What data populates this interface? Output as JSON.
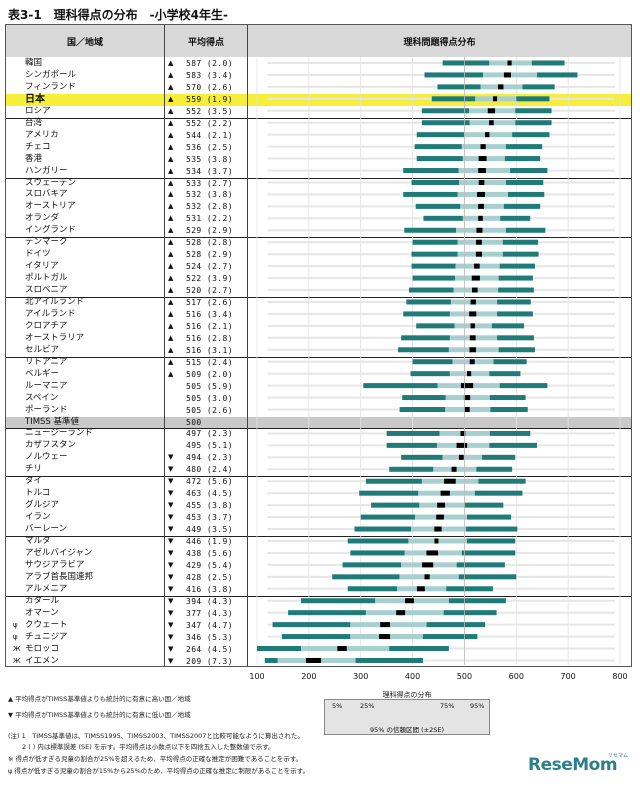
{
  "title": "表3-1　理科得点の分布　-小学校4年生-",
  "headers": {
    "country": "国／地域",
    "score": "平均得点",
    "dist": "理科問題得点分布"
  },
  "chart_data": {
    "type": "table",
    "xticks": [
      100,
      200,
      300,
      400,
      500,
      600,
      700,
      800
    ],
    "xlim": [
      100,
      800
    ],
    "benchmark": 500,
    "rows": [
      {
        "name": "韓国",
        "mark": "",
        "sig": "▲",
        "score": "587 (2.0)",
        "mean": 587,
        "p5": 458,
        "p25": 548,
        "p75": 630,
        "p95": 693
      },
      {
        "name": "シンガポール",
        "mark": "",
        "sig": "▲",
        "score": "583 (3.4)",
        "mean": 583,
        "p5": 423,
        "p25": 536,
        "p75": 640,
        "p95": 718
      },
      {
        "name": "フィンランド",
        "mark": "",
        "sig": "▲",
        "score": "570 (2.6)",
        "mean": 570,
        "p5": 448,
        "p25": 531,
        "p75": 612,
        "p95": 674
      },
      {
        "name": "日本",
        "mark": "",
        "sig": "▲",
        "score": "559 (1.9)",
        "mean": 559,
        "p5": 437,
        "p25": 521,
        "p75": 600,
        "p95": 664
      },
      {
        "name": "ロシア",
        "mark": "",
        "sig": "▲",
        "score": "552 (3.5)",
        "mean": 552,
        "p5": 418,
        "p25": 509,
        "p75": 598,
        "p95": 668
      },
      {
        "name": "台湾",
        "mark": "",
        "sig": "▲",
        "score": "552 (2.2)",
        "mean": 552,
        "p5": 418,
        "p25": 510,
        "p75": 598,
        "p95": 668
      },
      {
        "name": "アメリカ",
        "mark": "",
        "sig": "▲",
        "score": "544 (2.1)",
        "mean": 544,
        "p5": 408,
        "p25": 500,
        "p75": 592,
        "p95": 664
      },
      {
        "name": "チェコ",
        "mark": "",
        "sig": "▲",
        "score": "536 (2.5)",
        "mean": 536,
        "p5": 404,
        "p25": 495,
        "p75": 580,
        "p95": 650
      },
      {
        "name": "香港",
        "mark": "",
        "sig": "▲",
        "score": "535 (3.8)",
        "mean": 535,
        "p5": 408,
        "p25": 497,
        "p75": 578,
        "p95": 646
      },
      {
        "name": "ハンガリー",
        "mark": "",
        "sig": "▲",
        "score": "534 (3.7)",
        "mean": 534,
        "p5": 382,
        "p25": 489,
        "p75": 588,
        "p95": 660
      },
      {
        "name": "スウェーデン",
        "mark": "",
        "sig": "▲",
        "score": "533 (2.7)",
        "mean": 533,
        "p5": 398,
        "p25": 490,
        "p75": 580,
        "p95": 652
      },
      {
        "name": "スロバキア",
        "mark": "",
        "sig": "▲",
        "score": "532 (3.8)",
        "mean": 532,
        "p5": 382,
        "p25": 487,
        "p75": 584,
        "p95": 654
      },
      {
        "name": "オーストリア",
        "mark": "",
        "sig": "▲",
        "score": "532 (2.8)",
        "mean": 532,
        "p5": 406,
        "p25": 492,
        "p75": 576,
        "p95": 646
      },
      {
        "name": "オランダ",
        "mark": "",
        "sig": "▲",
        "score": "531 (2.2)",
        "mean": 531,
        "p5": 421,
        "p25": 497,
        "p75": 569,
        "p95": 627
      },
      {
        "name": "イングランド",
        "mark": "",
        "sig": "▲",
        "score": "529 (2.9)",
        "mean": 529,
        "p5": 384,
        "p25": 484,
        "p75": 580,
        "p95": 656
      },
      {
        "name": "デンマーク",
        "mark": "",
        "sig": "▲",
        "score": "528 (2.8)",
        "mean": 528,
        "p5": 400,
        "p25": 487,
        "p75": 574,
        "p95": 642
      },
      {
        "name": "ドイツ",
        "mark": "",
        "sig": "▲",
        "score": "528 (2.9)",
        "mean": 528,
        "p5": 398,
        "p25": 487,
        "p75": 574,
        "p95": 643
      },
      {
        "name": "イタリア",
        "mark": "",
        "sig": "▲",
        "score": "524 (2.7)",
        "mean": 524,
        "p5": 398,
        "p25": 483,
        "p75": 568,
        "p95": 636
      },
      {
        "name": "ポルトガル",
        "mark": "",
        "sig": "▲",
        "score": "522 (3.9)",
        "mean": 522,
        "p5": 400,
        "p25": 482,
        "p75": 566,
        "p95": 632
      },
      {
        "name": "スロベニア",
        "mark": "",
        "sig": "▲",
        "score": "520 (2.7)",
        "mean": 520,
        "p5": 393,
        "p25": 479,
        "p75": 565,
        "p95": 634
      },
      {
        "name": "北アイルランド",
        "mark": "",
        "sig": "▲",
        "score": "517 (2.6)",
        "mean": 517,
        "p5": 388,
        "p25": 474,
        "p75": 563,
        "p95": 628
      },
      {
        "name": "アイルランド",
        "mark": "",
        "sig": "▲",
        "score": "516 (3.4)",
        "mean": 516,
        "p5": 382,
        "p25": 472,
        "p75": 563,
        "p95": 632
      },
      {
        "name": "クロアチア",
        "mark": "",
        "sig": "▲",
        "score": "516 (2.1)",
        "mean": 516,
        "p5": 407,
        "p25": 481,
        "p75": 553,
        "p95": 615
      },
      {
        "name": "オーストラリア",
        "mark": "",
        "sig": "▲",
        "score": "516 (2.8)",
        "mean": 516,
        "p5": 378,
        "p25": 472,
        "p75": 563,
        "p95": 634
      },
      {
        "name": "セルビア",
        "mark": "",
        "sig": "▲",
        "score": "516 (3.1)",
        "mean": 516,
        "p5": 372,
        "p25": 470,
        "p75": 566,
        "p95": 636
      },
      {
        "name": "リトアニア",
        "mark": "",
        "sig": "▲",
        "score": "515 (2.4)",
        "mean": 515,
        "p5": 400,
        "p25": 477,
        "p75": 556,
        "p95": 620
      },
      {
        "name": "ベルギー",
        "mark": "",
        "sig": "▲",
        "score": "509 (2.0)",
        "mean": 509,
        "p5": 396,
        "p25": 472,
        "p75": 548,
        "p95": 608
      },
      {
        "name": "ルーマニア",
        "mark": "",
        "sig": "",
        "score": "505 (5.9)",
        "mean": 505,
        "p5": 305,
        "p25": 448,
        "p75": 568,
        "p95": 660
      },
      {
        "name": "スペイン",
        "mark": "",
        "sig": "",
        "score": "505 (3.0)",
        "mean": 505,
        "p5": 380,
        "p25": 464,
        "p75": 549,
        "p95": 618
      },
      {
        "name": "ポーランド",
        "mark": "",
        "sig": "",
        "score": "505 (2.6)",
        "mean": 505,
        "p5": 375,
        "p25": 463,
        "p75": 550,
        "p95": 622
      },
      {
        "name": "TIMSS 基準値",
        "mark": "",
        "sig": "",
        "score": "500",
        "bench": true
      },
      {
        "name": "ニュージーランド",
        "mark": "",
        "sig": "",
        "score": "497 (2.3)",
        "mean": 497,
        "p5": 350,
        "p25": 452,
        "p75": 549,
        "p95": 627
      },
      {
        "name": "カザフスタン",
        "mark": "",
        "sig": "",
        "score": "495 (5.1)",
        "mean": 495,
        "p5": 350,
        "p25": 447,
        "p75": 548,
        "p95": 640
      },
      {
        "name": "ノルウェー",
        "mark": "",
        "sig": "▼",
        "score": "494 (2.3)",
        "mean": 494,
        "p5": 378,
        "p25": 458,
        "p75": 534,
        "p95": 598
      },
      {
        "name": "チリ",
        "mark": "",
        "sig": "▼",
        "score": "480 (2.4)",
        "mean": 480,
        "p5": 355,
        "p25": 440,
        "p75": 523,
        "p95": 592
      },
      {
        "name": "タイ",
        "mark": "",
        "sig": "▼",
        "score": "472 (5.6)",
        "mean": 472,
        "p5": 310,
        "p25": 418,
        "p75": 527,
        "p95": 618
      },
      {
        "name": "トルコ",
        "mark": "",
        "sig": "▼",
        "score": "463 (4.5)",
        "mean": 463,
        "p5": 297,
        "p25": 411,
        "p75": 520,
        "p95": 612
      },
      {
        "name": "グルジア",
        "mark": "",
        "sig": "▼",
        "score": "455 (3.8)",
        "mean": 455,
        "p5": 320,
        "p25": 413,
        "p75": 500,
        "p95": 575
      },
      {
        "name": "イラン",
        "mark": "",
        "sig": "▼",
        "score": "453 (3.7)",
        "mean": 453,
        "p5": 300,
        "p25": 405,
        "p75": 505,
        "p95": 590
      },
      {
        "name": "バーレーン",
        "mark": "",
        "sig": "▼",
        "score": "449 (3.5)",
        "mean": 449,
        "p5": 288,
        "p25": 397,
        "p75": 503,
        "p95": 602
      },
      {
        "name": "マルタ",
        "mark": "",
        "sig": "▼",
        "score": "446 (1.9)",
        "mean": 446,
        "p5": 275,
        "p25": 392,
        "p75": 505,
        "p95": 598
      },
      {
        "name": "アゼルバイジャン",
        "mark": "",
        "sig": "▼",
        "score": "438 (5.6)",
        "mean": 438,
        "p5": 280,
        "p25": 385,
        "p75": 495,
        "p95": 598
      },
      {
        "name": "サウジアラビア",
        "mark": "",
        "sig": "▼",
        "score": "429 (5.4)",
        "mean": 429,
        "p5": 265,
        "p25": 378,
        "p75": 485,
        "p95": 578
      },
      {
        "name": "アラブ首長国連邦",
        "mark": "",
        "sig": "▼",
        "score": "428 (2.5)",
        "mean": 428,
        "p5": 245,
        "p25": 375,
        "p75": 489,
        "p95": 600
      },
      {
        "name": "アルメニア",
        "mark": "",
        "sig": "▼",
        "score": "416 (3.8)",
        "mean": 416,
        "p5": 275,
        "p25": 370,
        "p75": 465,
        "p95": 555
      },
      {
        "name": "カタール",
        "mark": "",
        "sig": "▼",
        "score": "394 (4.3)",
        "mean": 394,
        "p5": 185,
        "p25": 328,
        "p75": 470,
        "p95": 580
      },
      {
        "name": "オマーン",
        "mark": "",
        "sig": "▼",
        "score": "377 (4.3)",
        "mean": 377,
        "p5": 160,
        "p25": 310,
        "p75": 460,
        "p95": 562
      },
      {
        "name": "クウェート",
        "mark": "ψ",
        "sig": "▼",
        "score": "347 (4.7)",
        "mean": 347,
        "p5": 130,
        "p25": 280,
        "p75": 427,
        "p95": 540
      },
      {
        "name": "チュニジア",
        "mark": "ψ",
        "sig": "▼",
        "score": "346 (5.3)",
        "mean": 346,
        "p5": 148,
        "p25": 280,
        "p75": 420,
        "p95": 525
      },
      {
        "name": "モロッコ",
        "mark": "Ж",
        "sig": "▼",
        "score": "264 (4.5)",
        "mean": 264,
        "p5": 100,
        "p25": 185,
        "p75": 355,
        "p95": 470
      },
      {
        "name": "イエメン",
        "mark": "Ж",
        "sig": "▼",
        "score": "209 (7.3)",
        "mean": 209,
        "p5": 115,
        "p25": 140,
        "p75": 290,
        "p95": 420
      }
    ]
  },
  "legend": {
    "title": "理科得点の分布",
    "p5": "5%",
    "p25": "25%",
    "p75": "75%",
    "p95": "95%",
    "ci": "95% の信頼区間 (±2SE)"
  },
  "notes": [
    "▲ 平均得点がTIMSS基準値よりも統計的に有意に高い国／地域",
    "▼ 平均得点がTIMSS基準値よりも統計的に有意に低い国／地域",
    "(注) 1　TIMSS基準値は、TIMSS1995、TIMSS2003、TIMSS2007と比較可能なように算出された。",
    "2 ( ) 内は標準誤差 (SE) を示す。平均得点は小数点以下を四捨五入した整数値で示す。",
    "※ 得点が低すぎる児童の割合が25%を超えるため、平均得点の正確な推定が困難であることを示す。",
    "ψ 得点が低すぎる児童の割合が15%から25%のため、平均得点の正確な推定に制限があることを示す。"
  ],
  "logo": {
    "text": "ReseMom",
    "sub": "リセマム"
  },
  "colors": {
    "dark": "#1f7a78",
    "light": "#a8cfcf",
    "highlight": "#f7ee3c",
    "bench": "#c9c9c9"
  }
}
